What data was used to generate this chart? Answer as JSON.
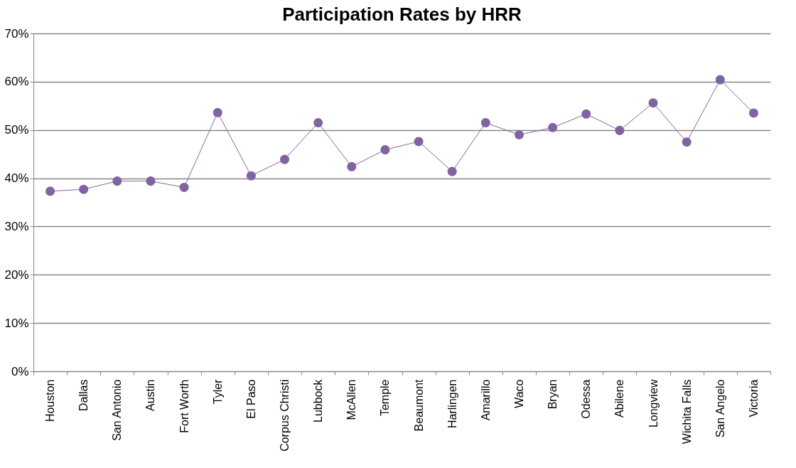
{
  "chart_data": {
    "type": "line",
    "title": "Participation Rates by HRR",
    "categories": [
      "Houston",
      "Dallas",
      "San Antonio",
      "Austin",
      "Fort Worth",
      "Tyler",
      "El Paso",
      "Corpus Christi",
      "Lubbock",
      "McAllen",
      "Temple",
      "Beaumont",
      "Harlingen",
      "Amarillo",
      "Waco",
      "Bryan",
      "Odessa",
      "Abilene",
      "Longview",
      "Wichita Falls",
      "San Angelo",
      "Victoria"
    ],
    "series": [
      {
        "color": "#8064a2",
        "values": [
          37.3,
          37.7,
          39.4,
          39.4,
          38.1,
          53.6,
          40.5,
          43.9,
          51.5,
          42.4,
          45.9,
          47.6,
          41.4,
          51.5,
          49.0,
          50.5,
          53.3,
          49.9,
          55.6,
          47.5,
          60.4,
          53.5
        ]
      }
    ],
    "ylim": [
      0,
      70
    ],
    "yticks": [
      {
        "value": 0,
        "label": "0%"
      },
      {
        "value": 10,
        "label": "10%"
      },
      {
        "value": 20,
        "label": "20%"
      },
      {
        "value": 30,
        "label": "30%"
      },
      {
        "value": 40,
        "label": "40%"
      },
      {
        "value": 50,
        "label": "50%"
      },
      {
        "value": 60,
        "label": "60%"
      },
      {
        "value": 70,
        "label": "70%"
      }
    ],
    "grid": "y",
    "marker": "circle",
    "line_style": "solid"
  }
}
